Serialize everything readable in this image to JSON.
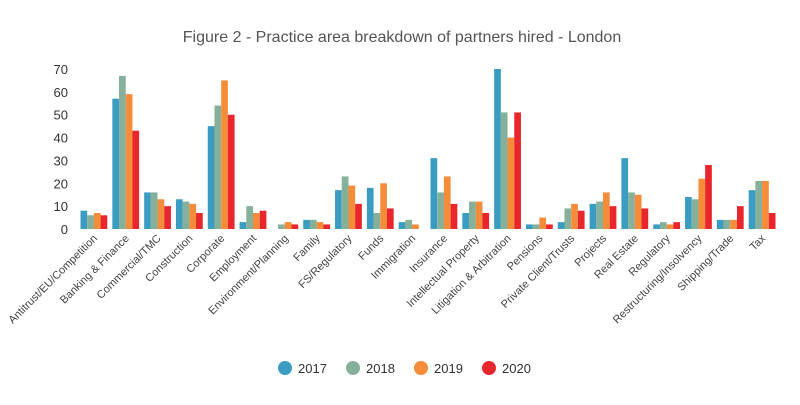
{
  "chart_data": {
    "type": "bar",
    "title": "Figure 2 - Practice area breakdown of partners hired - London",
    "categories": [
      "Antitrust/EU/Competition",
      "Banking & Finance",
      "Commercial/TMC",
      "Construction",
      "Corporate",
      "Employment",
      "Environment/Planning",
      "Family",
      "FS/Regulatory",
      "Funds",
      "Immigration",
      "Insurance",
      "Intellectual Property",
      "Litigation & Arbitration",
      "Pensions",
      "Private Client/Trusts",
      "Projects",
      "Real Estate",
      "Regulatory",
      "Restructuring/Insolvency",
      "Shipping/Trade",
      "Tax"
    ],
    "series": [
      {
        "name": "2017",
        "color": "#3a9cc1",
        "values": [
          8,
          57,
          16,
          13,
          45,
          3,
          0,
          4,
          17,
          18,
          3,
          31,
          7,
          70,
          2,
          3,
          11,
          31,
          2,
          14,
          4,
          17
        ]
      },
      {
        "name": "2018",
        "color": "#85b09a",
        "values": [
          6,
          67,
          16,
          12,
          54,
          10,
          2,
          4,
          23,
          7,
          4,
          16,
          12,
          51,
          2,
          9,
          12,
          16,
          3,
          13,
          4,
          21
        ]
      },
      {
        "name": "2019",
        "color": "#f58c3a",
        "values": [
          7,
          59,
          13,
          11,
          65,
          7,
          3,
          3,
          19,
          20,
          2,
          23,
          12,
          40,
          5,
          11,
          16,
          15,
          2,
          22,
          4,
          21
        ]
      },
      {
        "name": "2020",
        "color": "#e8262c",
        "values": [
          6,
          43,
          10,
          7,
          50,
          8,
          2,
          2,
          11,
          9,
          0,
          11,
          7,
          51,
          2,
          8,
          10,
          9,
          3,
          28,
          10,
          7
        ]
      }
    ],
    "xlabel": "",
    "ylabel": "",
    "ylim": [
      0,
      70
    ],
    "yticks": [
      0,
      10,
      20,
      30,
      40,
      50,
      60,
      70
    ],
    "grid": false,
    "legend_position": "bottom"
  }
}
